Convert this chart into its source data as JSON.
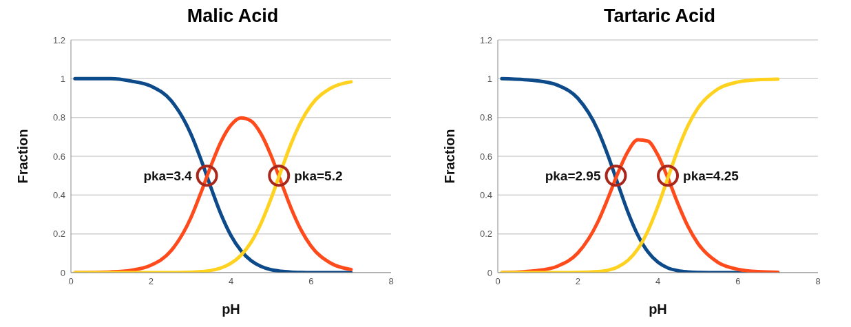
{
  "chart_data": [
    {
      "type": "line",
      "title": "Malic Acid",
      "xlabel": "pH",
      "ylabel": "Fraction",
      "x": [
        0.1,
        1,
        1.5,
        2,
        2.5,
        3,
        3.25,
        3.5,
        3.75,
        4,
        4.25,
        4.5,
        4.75,
        5,
        5.25,
        5.5,
        5.75,
        6,
        6.5,
        7
      ],
      "series": [
        {
          "color": "#0d4a8a",
          "values": [
            1,
            1,
            0.988,
            0.962,
            0.888,
            0.714,
            0.583,
            0.438,
            0.301,
            0.191,
            0.113,
            0.062,
            0.032,
            0.015,
            0.007,
            0.003,
            0.001,
            0,
            0,
            0
          ]
        },
        {
          "color": "#ff4a1c",
          "values": [
            0,
            0.004,
            0.012,
            0.038,
            0.112,
            0.284,
            0.413,
            0.551,
            0.675,
            0.761,
            0.798,
            0.782,
            0.715,
            0.604,
            0.468,
            0.333,
            0.22,
            0.137,
            0.048,
            0.016
          ]
        },
        {
          "color": "#ffd21f",
          "values": [
            0,
            0,
            0,
            0,
            0,
            0.002,
            0.005,
            0.011,
            0.024,
            0.048,
            0.09,
            0.156,
            0.254,
            0.381,
            0.525,
            0.664,
            0.779,
            0.863,
            0.952,
            0.984
          ]
        }
      ],
      "xlim": [
        0,
        8
      ],
      "xticks": [
        0,
        2,
        4,
        6,
        8
      ],
      "ylim": [
        0,
        1.2
      ],
      "yticks": [
        0,
        0.2,
        0.4,
        0.6,
        0.8,
        1,
        1.2
      ],
      "grid": "y",
      "legend": false,
      "marker": "none",
      "line_style": "solid",
      "annotations": [
        {
          "text": "pka=3.4",
          "x": 3.4,
          "y": 0.5
        },
        {
          "text": "pka=5.2",
          "x": 5.2,
          "y": 0.5
        }
      ]
    },
    {
      "type": "line",
      "title": "Tartaric Acid",
      "xlabel": "pH",
      "ylabel": "Fraction",
      "x": [
        0.1,
        1,
        1.5,
        2,
        2.5,
        2.75,
        3,
        3.25,
        3.5,
        3.75,
        4,
        4.25,
        4.5,
        4.75,
        5,
        5.5,
        6,
        6.5,
        7
      ],
      "series": [
        {
          "color": "#0d4a8a",
          "values": [
            1,
            0.989,
            0.966,
            0.899,
            0.735,
            0.606,
            0.458,
            0.313,
            0.193,
            0.107,
            0.054,
            0.024,
            0.01,
            0.004,
            0.001,
            0,
            0,
            0,
            0
          ]
        },
        {
          "color": "#ff4a1c",
          "values": [
            0,
            0.011,
            0.034,
            0.101,
            0.261,
            0.382,
            0.513,
            0.624,
            0.685,
            0.678,
            0.606,
            0.488,
            0.356,
            0.239,
            0.151,
            0.053,
            0.017,
            0.005,
            0.002
          ]
        },
        {
          "color": "#ffd21f",
          "values": [
            0,
            0,
            0,
            0.001,
            0.005,
            0.012,
            0.029,
            0.063,
            0.122,
            0.215,
            0.341,
            0.488,
            0.634,
            0.757,
            0.848,
            0.947,
            0.983,
            0.995,
            0.998
          ]
        }
      ],
      "xlim": [
        0,
        8
      ],
      "xticks": [
        0,
        2,
        4,
        6,
        8
      ],
      "ylim": [
        0,
        1.2
      ],
      "yticks": [
        0,
        0.2,
        0.4,
        0.6,
        0.8,
        1,
        1.2
      ],
      "grid": "y",
      "legend": false,
      "marker": "none",
      "line_style": "solid",
      "annotations": [
        {
          "text": "pka=2.95",
          "x": 2.95,
          "y": 0.5
        },
        {
          "text": "pka=4.25",
          "x": 4.25,
          "y": 0.5
        }
      ]
    }
  ]
}
